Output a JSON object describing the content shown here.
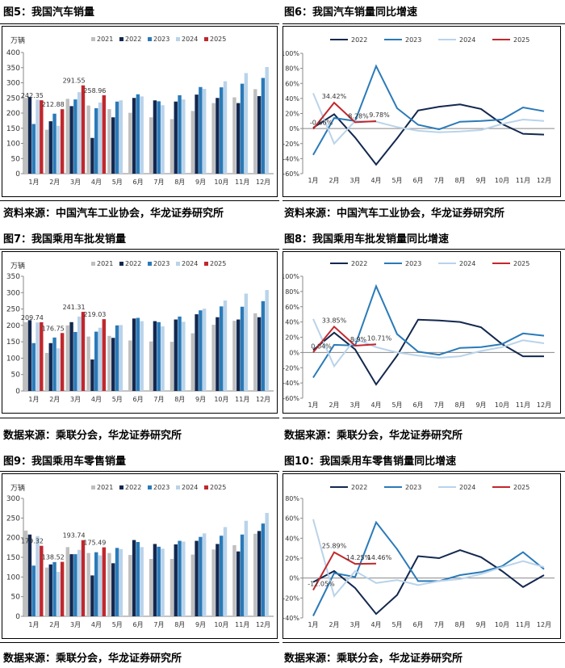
{
  "colors": {
    "y2021": "#bfbfbf",
    "y2022": "#13284f",
    "y2023": "#2a7ab8",
    "y2024": "#b9d3ea",
    "y2025": "#c0282d"
  },
  "figures": {
    "f5": {
      "title": "图5：我国汽车销量",
      "source": "资料来源：中国汽车工业协会，华龙证券研究所"
    },
    "f6": {
      "title": "图6：我国汽车销量同比增速",
      "source": "资料来源：中国汽车工业协会，华龙证券研究所"
    },
    "f7": {
      "title": "图7：我国乘用车批发销量",
      "source": "数据来源：乘联分会，华龙证券研究所"
    },
    "f8": {
      "title": "图8：我国乘用车批发销量同比增速",
      "source": "数据来源：乘联分会，华龙证券研究所"
    },
    "f9": {
      "title": "图9：我国乘用车零售销量",
      "source": "数据来源：乘联分会，华龙证券研究所"
    },
    "f10": {
      "title": "图10：我国乘用车零售销量同比增速",
      "source": "数据来源：乘联分会，华龙证券研究所"
    }
  },
  "chart_data": [
    {
      "id": "f5",
      "type": "bar",
      "unit_label": "万辆",
      "categories": [
        "1月",
        "2月",
        "3月",
        "4月",
        "5月",
        "6月",
        "7月",
        "8月",
        "9月",
        "10月",
        "11月",
        "12月"
      ],
      "ylim": [
        0,
        400
      ],
      "yticks": [
        0,
        50,
        100,
        150,
        200,
        250,
        300,
        350,
        400
      ],
      "series": [
        {
          "name": "2021",
          "values": [
            250,
            145,
            247,
            225,
            213,
            201,
            186,
            180,
            207,
            233,
            252,
            279
          ]
        },
        {
          "name": "2022",
          "values": [
            253,
            173,
            223,
            118,
            186,
            250,
            242,
            238,
            261,
            250,
            233,
            256
          ]
        },
        {
          "name": "2023",
          "values": [
            164,
            198,
            245,
            216,
            238,
            262,
            239,
            259,
            286,
            285,
            297,
            316
          ]
        },
        {
          "name": "2024",
          "values": [
            244,
            158,
            269,
            235,
            242,
            255,
            226,
            245,
            280,
            305,
            332,
            352
          ]
        },
        {
          "name": "2025",
          "values": [
            242.35,
            212.88,
            291.55,
            258.96
          ]
        }
      ],
      "labels": [
        "242.35",
        "212.88",
        "291.55",
        "258.96"
      ]
    },
    {
      "id": "f6",
      "type": "line",
      "categories": [
        "1月",
        "2月",
        "3月",
        "4月",
        "5月",
        "6月",
        "7月",
        "8月",
        "9月",
        "10月",
        "11月",
        "12月"
      ],
      "ylim": [
        -60,
        100
      ],
      "yticks": [
        "-60%",
        "-40%",
        "-20%",
        "0%",
        "20%",
        "40%",
        "60%",
        "80%",
        "100%"
      ],
      "ytick_values": [
        -60,
        -40,
        -20,
        0,
        20,
        40,
        60,
        80,
        100
      ],
      "series": [
        {
          "name": "2022",
          "values": [
            1,
            19,
            -12,
            -48,
            -13,
            24,
            29,
            32,
            26,
            6,
            -7,
            -8
          ]
        },
        {
          "name": "2023",
          "values": [
            -35,
            14,
            10,
            83,
            27,
            5,
            -1,
            9,
            10,
            12,
            28,
            23
          ]
        },
        {
          "name": "2024",
          "values": [
            47,
            -20,
            10,
            9,
            2,
            -3,
            -5,
            -4,
            -2,
            6,
            12,
            10
          ]
        },
        {
          "name": "2025",
          "values": [
            -0.66,
            34.42,
            8.28,
            9.78
          ]
        }
      ],
      "labels": [
        "-0.66%",
        "34.42%",
        "8.28%",
        "9.78%"
      ]
    },
    {
      "id": "f7",
      "type": "bar",
      "unit_label": "万辆",
      "categories": [
        "1月",
        "2月",
        "3月",
        "4月",
        "5月",
        "6月",
        "7月",
        "8月",
        "9月",
        "10月",
        "11月",
        "12月"
      ],
      "ylim": [
        0,
        350
      ],
      "yticks": [
        0,
        50,
        100,
        150,
        200,
        250,
        300,
        350
      ],
      "series": [
        {
          "name": "2021",
          "values": [
            210,
            116,
            200,
            166,
            168,
            154,
            151,
            150,
            176,
            202,
            214,
            237
          ]
        },
        {
          "name": "2022",
          "values": [
            216,
            146,
            210,
            96,
            162,
            221,
            213,
            218,
            234,
            225,
            218,
            225
          ]
        },
        {
          "name": "2023",
          "values": [
            146,
            163,
            180,
            181,
            200,
            223,
            210,
            227,
            246,
            258,
            257,
            274
          ]
        },
        {
          "name": "2024",
          "values": [
            209,
            130,
            227,
            193,
            201,
            213,
            197,
            211,
            251,
            276,
            297,
            308
          ]
        },
        {
          "name": "2025",
          "values": [
            209.74,
            176.75,
            241.31,
            219.03
          ]
        }
      ],
      "labels": [
        "209.74",
        "176.75",
        "241.31",
        "219.03"
      ]
    },
    {
      "id": "f8",
      "type": "line",
      "categories": [
        "1月",
        "2月",
        "3月",
        "4月",
        "5月",
        "6月",
        "7月",
        "8月",
        "9月",
        "10月",
        "11月",
        "12月"
      ],
      "ylim": [
        -60,
        100
      ],
      "yticks": [
        "-60%",
        "-40%",
        "-20%",
        "0%",
        "20%",
        "40%",
        "60%",
        "80%",
        "100%"
      ],
      "ytick_values": [
        -60,
        -40,
        -20,
        0,
        20,
        40,
        60,
        80,
        100
      ],
      "series": [
        {
          "name": "2022",
          "values": [
            3,
            26,
            4,
            -42,
            -4,
            43,
            42,
            40,
            33,
            11,
            -5,
            -5
          ]
        },
        {
          "name": "2023",
          "values": [
            -33,
            10,
            9,
            87,
            24,
            1,
            -3,
            6,
            7,
            11,
            25,
            22
          ]
        },
        {
          "name": "2024",
          "values": [
            44,
            -18,
            18,
            7,
            0,
            -4,
            -7,
            -5,
            2,
            7,
            16,
            12
          ]
        },
        {
          "name": "2025",
          "values": [
            0.04,
            33.85,
            8.9,
            10.71
          ]
        }
      ],
      "labels": [
        "0.04%",
        "33.85%",
        "8.9%",
        "10.71%"
      ]
    },
    {
      "id": "f9",
      "type": "bar",
      "unit_label": "万辆",
      "categories": [
        "1月",
        "2月",
        "3月",
        "4月",
        "5月",
        "6月",
        "7月",
        "8月",
        "9月",
        "10月",
        "11月",
        "12月"
      ],
      "ylim": [
        0,
        300
      ],
      "yticks": [
        0,
        50,
        100,
        150,
        200,
        250,
        300
      ],
      "series": [
        {
          "name": "2021",
          "values": [
            218,
            124,
            176,
            161,
            161,
            156,
            146,
            146,
            157,
            170,
            181,
            210
          ]
        },
        {
          "name": "2022",
          "values": [
            208,
            132,
            158,
            104,
            135,
            194,
            184,
            183,
            192,
            184,
            165,
            217
          ]
        },
        {
          "name": "2023",
          "values": [
            129,
            138,
            158,
            163,
            174,
            189,
            177,
            192,
            202,
            205,
            208,
            236
          ]
        },
        {
          "name": "2024",
          "values": [
            204,
            113,
            169,
            155,
            171,
            176,
            172,
            190,
            211,
            227,
            243,
            263
          ]
        },
        {
          "name": "2025",
          "values": [
            179.32,
            138.52,
            193.74,
            175.49
          ]
        }
      ],
      "labels": [
        "179.32",
        "138.52",
        "193.74",
        "175.49"
      ]
    },
    {
      "id": "f10",
      "type": "line",
      "categories": [
        "1月",
        "2月",
        "3月",
        "4月",
        "5月",
        "6月",
        "7月",
        "8月",
        "9月",
        "10月",
        "11月",
        "12月"
      ],
      "ylim": [
        -40,
        80
      ],
      "yticks": [
        "-40%",
        "-20%",
        "0%",
        "20%",
        "40%",
        "60%",
        "80%"
      ],
      "ytick_values": [
        -40,
        -20,
        0,
        20,
        40,
        60,
        80
      ],
      "series": [
        {
          "name": "2022",
          "values": [
            -4,
            7,
            -10,
            -36,
            -17,
            22,
            20,
            28,
            21,
            7,
            -9,
            3
          ]
        },
        {
          "name": "2023",
          "values": [
            -38,
            5,
            1,
            56,
            29,
            -3,
            -3,
            3,
            6,
            12,
            26,
            9
          ]
        },
        {
          "name": "2024",
          "values": [
            59,
            -18,
            7,
            -5,
            -2,
            -7,
            -3,
            -1,
            4,
            11,
            17,
            11
          ]
        },
        {
          "name": "2025",
          "values": [
            -12.05,
            25.89,
            14.25,
            14.46
          ]
        }
      ],
      "labels": [
        "-12.05%",
        "25.89%",
        "14.25%",
        "14.46%"
      ]
    }
  ]
}
